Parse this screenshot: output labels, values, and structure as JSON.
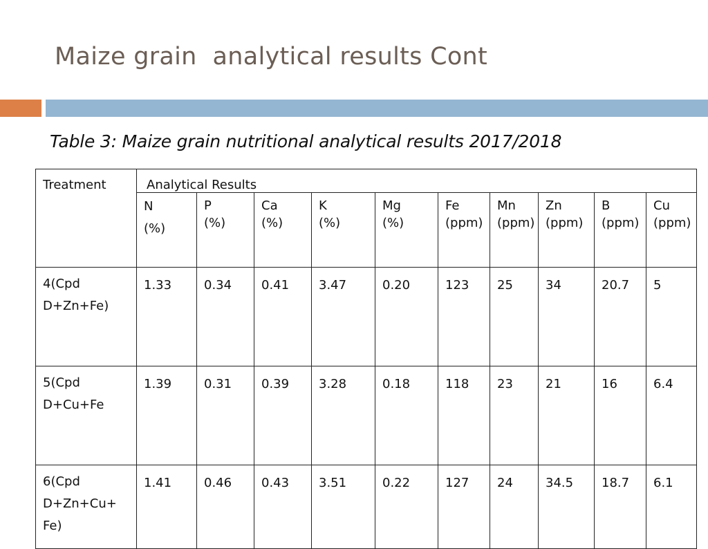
{
  "slide": {
    "title": "Maize grain  analytical results Cont",
    "caption": "Table 3: Maize grain nutritional analytical results 2017/2018"
  },
  "accent_colors": {
    "orange": "#dd8047",
    "blue": "#94b6d2",
    "highlight_red": "#e8130f"
  },
  "table": {
    "treatment_header": "Treatment",
    "group_header": "Analytical Results",
    "columns": [
      {
        "name": "N",
        "unit": "(%)"
      },
      {
        "name": "P",
        "unit": "(%)"
      },
      {
        "name": "Ca",
        "unit": "(%)"
      },
      {
        "name": "K",
        "unit": "(%)"
      },
      {
        "name": "Mg",
        "unit": "(%)"
      },
      {
        "name": "Fe",
        "unit": "(ppm)"
      },
      {
        "name": "Mn",
        "unit": "(ppm)"
      },
      {
        "name": "Zn",
        "unit": "(ppm)"
      },
      {
        "name": "B",
        "unit": "(ppm)"
      },
      {
        "name": "Cu",
        "unit": "(ppm)"
      }
    ],
    "rows": [
      {
        "treatment": [
          "4(Cpd",
          "D+Zn+Fe)"
        ],
        "values": [
          "1.33",
          "0.34",
          "0.41",
          "3.47",
          "0.20",
          "123",
          "25",
          "34",
          "20.7",
          "5"
        ],
        "highlight": false
      },
      {
        "treatment": [
          "5(Cpd",
          "D+Cu+Fe"
        ],
        "values": [
          "1.39",
          "0.31",
          "0.39",
          "3.28",
          "0.18",
          "118",
          "23",
          "21",
          "16",
          "6.4"
        ],
        "highlight": false
      },
      {
        "treatment": [
          "6(Cpd",
          "D+Zn+Cu+",
          "Fe)"
        ],
        "values": [
          "1.41",
          "0.46",
          "0.43",
          "3.51",
          "0.22",
          "127",
          "24",
          "34.5",
          "18.7",
          "6.1"
        ],
        "highlight": true
      }
    ]
  }
}
